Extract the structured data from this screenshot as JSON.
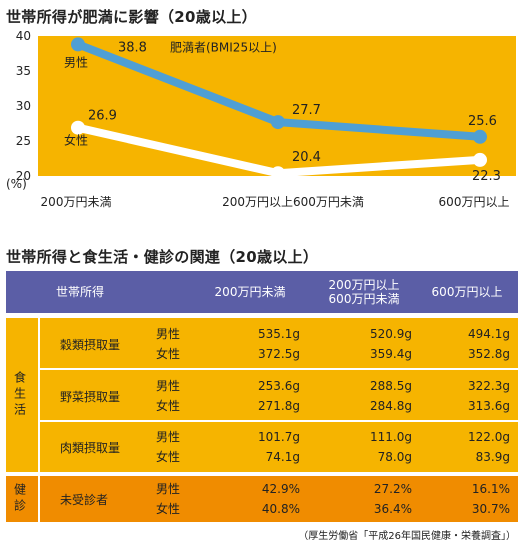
{
  "chart_title": "世帯所得が肥満に影響（20歳以上）",
  "table_title": "世帯所得と食生活・健診の関連（20歳以上）",
  "chart_data": {
    "type": "line",
    "categories": [
      "200万円未満",
      "200万円以上600万円未満",
      "600万円以上"
    ],
    "ylabel": "(%)",
    "ylim": [
      20,
      40
    ],
    "yticks": [
      20,
      25,
      30,
      35,
      40
    ],
    "series": [
      {
        "name": "男性",
        "values": [
          38.8,
          27.7,
          25.6
        ],
        "color": "#4f9fd4",
        "value_labels": [
          "38.8",
          "27.7",
          "25.6"
        ]
      },
      {
        "name": "女性",
        "values": [
          26.9,
          20.4,
          22.3
        ],
        "color": "#ffffff",
        "value_labels": [
          "26.9",
          "20.4",
          "22.3"
        ]
      }
    ],
    "annotation": "肥満者(BMI25以上)",
    "background": "#f6b400"
  },
  "table": {
    "header": [
      "世帯所得",
      "200万円未満",
      "200万円以上",
      "600万円未満",
      "600万円以上"
    ],
    "food_group_label": "食生活",
    "health_group_label": "健診",
    "sex_labels": [
      "男性",
      "女性"
    ],
    "rows": [
      {
        "category": "穀類摂取量",
        "male": [
          "535.1g",
          "520.9g",
          "494.1g"
        ],
        "female": [
          "372.5g",
          "359.4g",
          "352.8g"
        ]
      },
      {
        "category": "野菜摂取量",
        "male": [
          "253.6g",
          "288.5g",
          "322.3g"
        ],
        "female": [
          "271.8g",
          "284.8g",
          "313.6g"
        ]
      },
      {
        "category": "肉類摂取量",
        "male": [
          "101.7g",
          "111.0g",
          "122.0g"
        ],
        "female": [
          "74.1g",
          "78.0g",
          "83.9g"
        ]
      },
      {
        "category": "未受診者",
        "male": [
          "42.9%",
          "27.2%",
          "16.1%"
        ],
        "female": [
          "40.8%",
          "36.4%",
          "30.7%"
        ]
      }
    ],
    "colors": {
      "header": "#5b5ea6",
      "food": "#f6b400",
      "health": "#f08c00"
    }
  },
  "source": "（厚生労働省「平成26年国民健康・栄養調査」）"
}
